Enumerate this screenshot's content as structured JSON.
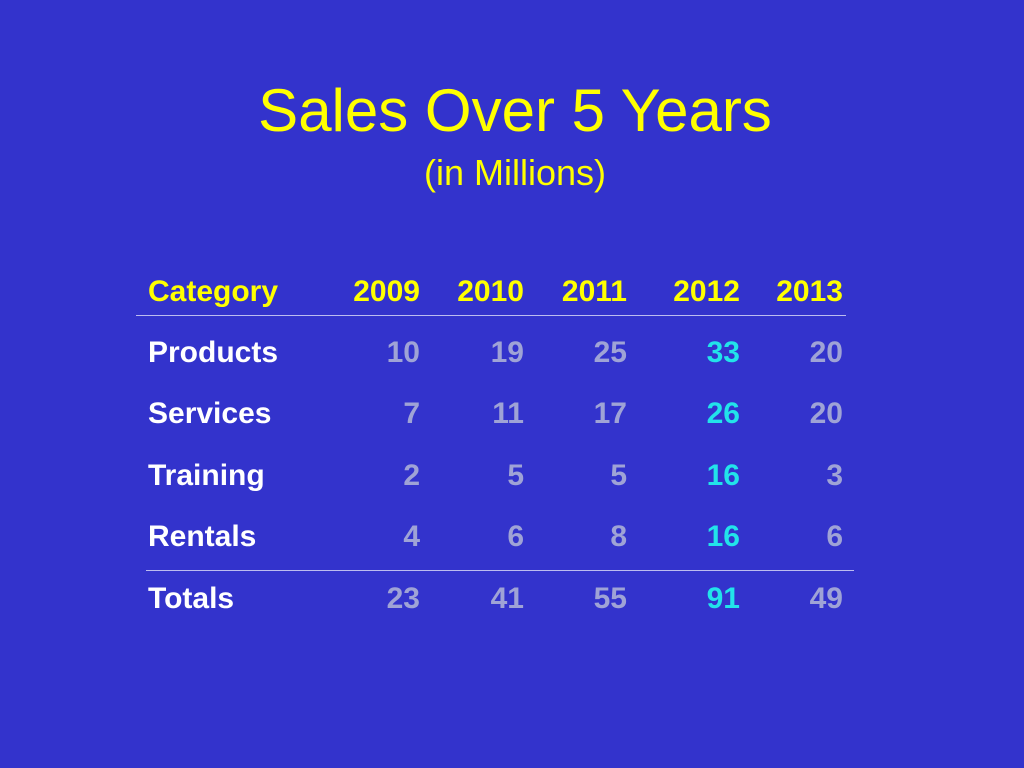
{
  "title": "Sales Over 5 Years",
  "subtitle": "(in Millions)",
  "colors": {
    "background": "#3333cc",
    "header_text": "#ffff00",
    "row_label_text": "#ffffff",
    "value_text": "#9fa3d6",
    "highlight_text": "#22e3ea"
  },
  "chart_data": {
    "type": "table",
    "title": "Sales Over 5 Years",
    "subtitle": "(in Millions)",
    "columns": [
      "Category",
      "2009",
      "2010",
      "2011",
      "2012",
      "2013"
    ],
    "highlight_column": "2012",
    "rows": [
      {
        "label": "Products",
        "values": [
          10,
          19,
          25,
          33,
          20
        ]
      },
      {
        "label": "Services",
        "values": [
          7,
          11,
          17,
          26,
          20
        ]
      },
      {
        "label": "Training",
        "values": [
          2,
          5,
          5,
          16,
          3
        ]
      },
      {
        "label": "Rentals",
        "values": [
          4,
          6,
          8,
          16,
          6
        ]
      }
    ],
    "totals": {
      "label": "Totals",
      "values": [
        23,
        41,
        55,
        91,
        49
      ]
    }
  }
}
